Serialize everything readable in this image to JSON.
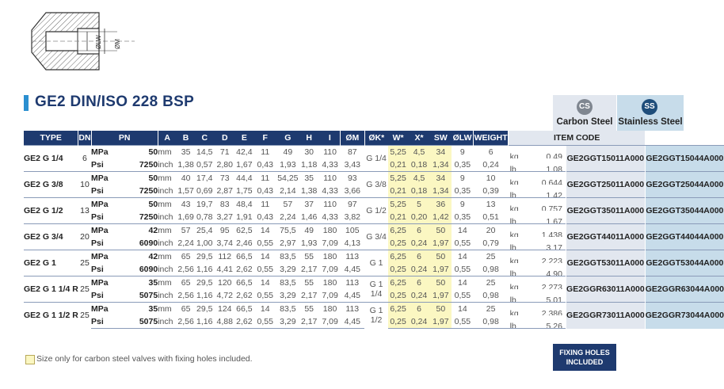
{
  "diagram": {
    "label_lw": "ØLW",
    "label_m": "ØM"
  },
  "title": "GE2 DIN/ISO 228 BSP",
  "materials": {
    "cs": {
      "badge": "CS",
      "label": "Carbon Steel",
      "color": "#7f8690"
    },
    "ss": {
      "badge": "SS",
      "label": "Stainless Steel",
      "color": "#1e4d7a"
    }
  },
  "headers": [
    "TYPE",
    "DN",
    "PN",
    "",
    "A",
    "B",
    "C",
    "D",
    "E",
    "F",
    "G",
    "H",
    "I",
    "ØM",
    "ØK*",
    "W*",
    "X*",
    "SW",
    "ØLW",
    "WEIGHT",
    "ITEM CODE"
  ],
  "rows": [
    {
      "type": "GE2 G 1/4",
      "dn": "6",
      "pn_mpa": "50",
      "pn_psi": "7250",
      "om": [
        "G 1/4"
      ],
      "mm": [
        "35",
        "14,5",
        "71",
        "42,4",
        "11",
        "49",
        "30",
        "110",
        "87"
      ],
      "inch": [
        "1,38",
        "0,57",
        "2,80",
        "1,67",
        "0,43",
        "1,93",
        "1,18",
        "4,33",
        "3,43"
      ],
      "mm2": [
        "5,25",
        "4,5",
        "34",
        "9",
        "6"
      ],
      "inch2": [
        "0,21",
        "0,18",
        "1,34",
        "0,35",
        "0,24"
      ],
      "kg": "0,49",
      "lb": "1,08",
      "cs": "GE2GGT15011A000",
      "ss": "GE2GGT15044A000"
    },
    {
      "type": "GE2 G 3/8",
      "dn": "10",
      "pn_mpa": "50",
      "pn_psi": "7250",
      "om": [
        "G 3/8"
      ],
      "mm": [
        "40",
        "17,4",
        "73",
        "44,4",
        "11",
        "54,25",
        "35",
        "110",
        "93"
      ],
      "inch": [
        "1,57",
        "0,69",
        "2,87",
        "1,75",
        "0,43",
        "2,14",
        "1,38",
        "4,33",
        "3,66"
      ],
      "mm2": [
        "5,25",
        "4,5",
        "34",
        "9",
        "10"
      ],
      "inch2": [
        "0,21",
        "0,18",
        "1,34",
        "0,35",
        "0,39"
      ],
      "kg": "0,644",
      "lb": "1,42",
      "cs": "GE2GGT25011A000",
      "ss": "GE2GGT25044A000"
    },
    {
      "type": "GE2 G 1/2",
      "dn": "13",
      "pn_mpa": "50",
      "pn_psi": "7250",
      "om": [
        "G 1/2"
      ],
      "mm": [
        "43",
        "19,7",
        "83",
        "48,4",
        "11",
        "57",
        "37",
        "110",
        "97"
      ],
      "inch": [
        "1,69",
        "0,78",
        "3,27",
        "1,91",
        "0,43",
        "2,24",
        "1,46",
        "4,33",
        "3,82"
      ],
      "mm2": [
        "5,25",
        "5",
        "36",
        "9",
        "13"
      ],
      "inch2": [
        "0,21",
        "0,20",
        "1,42",
        "0,35",
        "0,51"
      ],
      "kg": "0,757",
      "lb": "1,67",
      "cs": "GE2GGT35011A000",
      "ss": "GE2GGT35044A000"
    },
    {
      "type": "GE2 G 3/4",
      "dn": "20",
      "pn_mpa": "42",
      "pn_psi": "6090",
      "om": [
        "G 3/4"
      ],
      "mm": [
        "57",
        "25,4",
        "95",
        "62,5",
        "14",
        "75,5",
        "49",
        "180",
        "105"
      ],
      "inch": [
        "2,24",
        "1,00",
        "3,74",
        "2,46",
        "0,55",
        "2,97",
        "1,93",
        "7,09",
        "4,13"
      ],
      "mm2": [
        "6,25",
        "6",
        "50",
        "14",
        "20"
      ],
      "inch2": [
        "0,25",
        "0,24",
        "1,97",
        "0,55",
        "0,79"
      ],
      "kg": "1,438",
      "lb": "3,17",
      "cs": "GE2GGT44011A000",
      "ss": "GE2GGT44044A000"
    },
    {
      "type": "GE2 G 1",
      "dn": "25",
      "pn_mpa": "42",
      "pn_psi": "6090",
      "om": [
        "G 1"
      ],
      "mm": [
        "65",
        "29,5",
        "112",
        "66,5",
        "14",
        "83,5",
        "55",
        "180",
        "113"
      ],
      "inch": [
        "2,56",
        "1,16",
        "4,41",
        "2,62",
        "0,55",
        "3,29",
        "2,17",
        "7,09",
        "4,45"
      ],
      "mm2": [
        "6,25",
        "6",
        "50",
        "14",
        "25"
      ],
      "inch2": [
        "0,25",
        "0,24",
        "1,97",
        "0,55",
        "0,98"
      ],
      "kg": "2,223",
      "lb": "4,90",
      "cs": "GE2GGT53011A000",
      "ss": "GE2GGT53044A000"
    },
    {
      "type": "GE2 G 1 1/4 R",
      "dn": "25",
      "pn_mpa": "35",
      "pn_psi": "5075",
      "om": [
        "G 1",
        "1/4"
      ],
      "mm": [
        "65",
        "29,5",
        "120",
        "66,5",
        "14",
        "83,5",
        "55",
        "180",
        "113"
      ],
      "inch": [
        "2,56",
        "1,16",
        "4,72",
        "2,62",
        "0,55",
        "3,29",
        "2,17",
        "7,09",
        "4,45"
      ],
      "mm2": [
        "6,25",
        "6",
        "50",
        "14",
        "25"
      ],
      "inch2": [
        "0,25",
        "0,24",
        "1,97",
        "0,55",
        "0,98"
      ],
      "kg": "2,273",
      "lb": "5,01",
      "cs": "GE2GGR63011A000",
      "ss": "GE2GGR63044A000"
    },
    {
      "type": "GE2 G 1 1/2 R",
      "dn": "25",
      "pn_mpa": "35",
      "pn_psi": "5075",
      "om": [
        "G 1",
        "1/2"
      ],
      "mm": [
        "65",
        "29,5",
        "124",
        "66,5",
        "14",
        "83,5",
        "55",
        "180",
        "113"
      ],
      "inch": [
        "2,56",
        "1,16",
        "4,88",
        "2,62",
        "0,55",
        "3,29",
        "2,17",
        "7,09",
        "4,45"
      ],
      "mm2": [
        "6,25",
        "6",
        "50",
        "14",
        "25"
      ],
      "inch2": [
        "0,25",
        "0,24",
        "1,97",
        "0,55",
        "0,98"
      ],
      "kg": "2,386",
      "lb": "5,26",
      "cs": "GE2GGR73011A000",
      "ss": "GE2GGR73044A000"
    }
  ],
  "units": {
    "mpa": "MPa",
    "psi": "Psi",
    "mm": "mm",
    "inch": "inch",
    "kg": "kg",
    "lb": "lb"
  },
  "legend": "Size only for carbon steel valves with fixing holes included.",
  "fixing_holes": [
    "FIXING HOLES",
    "INCLUDED"
  ],
  "colors": {
    "header_bg": "#1e3a6f",
    "accent": "#2b8fd0",
    "highlight": "#fbf7c2",
    "cs_bg": "#e2e7ef",
    "ss_bg": "#c7dcea"
  }
}
